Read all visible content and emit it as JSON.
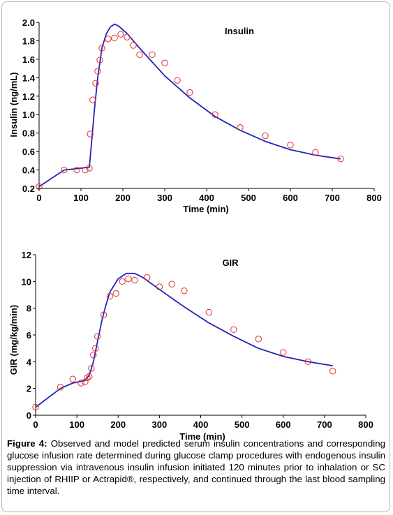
{
  "colors": {
    "model_line": "#2222bb",
    "observed_marker": "#e03030",
    "axis": "#000000"
  },
  "caption": {
    "label": "Figure 4:",
    "text": "Observed and model predicted serum insulin concentrations and corresponding glucose infusion rate determined during glucose clamp procedures with endogenous insulin suppression via intravenous insulin infusion initiated 120 minutes prior to inhalation or SC injection of RHIIP or Actrapid®, respectively, and continued through the last blood sampling time interval."
  },
  "chart_data": [
    {
      "type": "scatter",
      "title": "Insulin",
      "xlabel": "Time (min)",
      "ylabel": "Insulin (ng/mL)",
      "xlim": [
        0,
        800
      ],
      "ylim": [
        0.2,
        2.0
      ],
      "xticks": [
        "0",
        "100",
        "200",
        "300",
        "400",
        "500",
        "600",
        "700",
        "800"
      ],
      "yticks": [
        "0.2",
        "0.4",
        "0.6",
        "0.8",
        "1.0",
        "1.2",
        "1.4",
        "1.6",
        "1.8",
        "2.0"
      ],
      "xtick_values": [
        0,
        100,
        200,
        300,
        400,
        500,
        600,
        700,
        800
      ],
      "ytick_values": [
        0.2,
        0.4,
        0.6,
        0.8,
        1.0,
        1.2,
        1.4,
        1.6,
        1.8,
        2.0
      ],
      "series": [
        {
          "kind": "line",
          "x": [
            0,
            60,
            120,
            125,
            132,
            140,
            150,
            160,
            170,
            180,
            190,
            210,
            240,
            300,
            360,
            420,
            480,
            540,
            600,
            660,
            720
          ],
          "y": [
            0.22,
            0.4,
            0.43,
            0.68,
            1.05,
            1.4,
            1.72,
            1.87,
            1.95,
            1.98,
            1.96,
            1.88,
            1.72,
            1.42,
            1.18,
            0.98,
            0.83,
            0.71,
            0.62,
            0.56,
            0.52
          ]
        },
        {
          "kind": "scatter",
          "x": [
            0,
            60,
            90,
            110,
            120,
            122,
            128,
            135,
            140,
            145,
            150,
            165,
            180,
            195,
            210,
            225,
            240,
            270,
            300,
            330,
            360,
            420,
            480,
            540,
            600,
            660,
            720
          ],
          "y": [
            0.22,
            0.4,
            0.4,
            0.4,
            0.42,
            0.79,
            1.16,
            1.34,
            1.47,
            1.59,
            1.72,
            1.82,
            1.83,
            1.87,
            1.84,
            1.75,
            1.65,
            1.65,
            1.56,
            1.37,
            1.24,
            1.0,
            0.86,
            0.77,
            0.67,
            0.59,
            0.52
          ]
        }
      ]
    },
    {
      "type": "scatter",
      "title": "GIR",
      "xlabel": "Time (min)",
      "ylabel": "GIR (mg/kg/min)",
      "xlim": [
        0,
        800
      ],
      "ylim": [
        0,
        12
      ],
      "xticks": [
        "0",
        "100",
        "200",
        "300",
        "400",
        "500",
        "600",
        "700",
        "800"
      ],
      "yticks": [
        "0",
        "2",
        "4",
        "6",
        "8",
        "10",
        "12"
      ],
      "xtick_values": [
        0,
        100,
        200,
        300,
        400,
        500,
        600,
        700,
        800
      ],
      "ytick_values": [
        0,
        2,
        4,
        6,
        8,
        10,
        12
      ],
      "series": [
        {
          "kind": "line",
          "x": [
            0,
            60,
            90,
            120,
            130,
            140,
            150,
            160,
            170,
            180,
            200,
            220,
            240,
            260,
            300,
            360,
            420,
            480,
            540,
            600,
            660,
            720
          ],
          "y": [
            0.6,
            2.0,
            2.4,
            2.6,
            3.0,
            4.0,
            5.5,
            7.0,
            8.2,
            9.2,
            10.2,
            10.6,
            10.6,
            10.3,
            9.4,
            8.1,
            6.9,
            5.9,
            5.0,
            4.4,
            4.0,
            3.7
          ]
        },
        {
          "kind": "scatter",
          "x": [
            0,
            60,
            90,
            110,
            120,
            125,
            130,
            135,
            140,
            145,
            150,
            165,
            180,
            195,
            210,
            225,
            240,
            270,
            300,
            330,
            360,
            420,
            480,
            540,
            600,
            660,
            720
          ],
          "y": [
            0.6,
            2.1,
            2.7,
            2.4,
            2.5,
            2.8,
            2.9,
            3.5,
            4.5,
            5.0,
            5.9,
            7.5,
            8.9,
            9.1,
            10.0,
            10.2,
            10.1,
            10.3,
            9.6,
            9.8,
            9.3,
            7.7,
            6.4,
            5.7,
            4.7,
            4.0,
            3.3
          ]
        }
      ]
    }
  ]
}
